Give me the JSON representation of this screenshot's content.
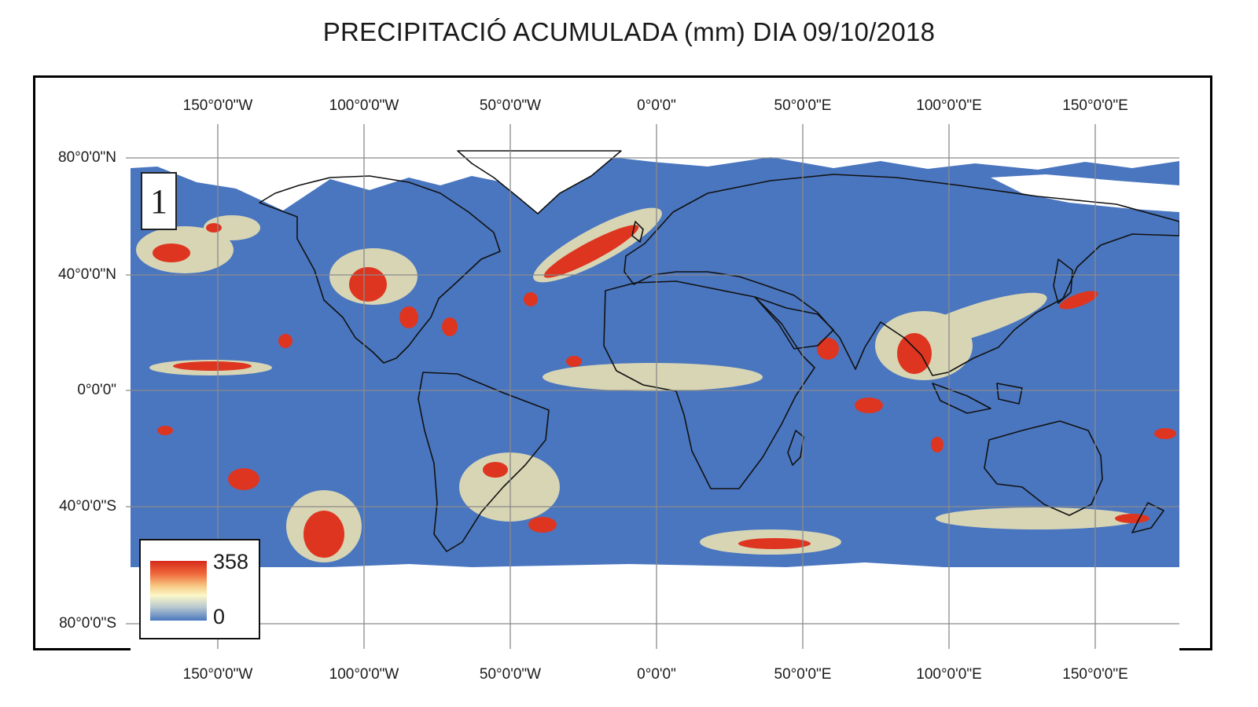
{
  "title": "PRECIPITACIÓ ACUMULADA (mm) DIA 09/10/2018",
  "panel_label": "1",
  "longitude_labels": [
    "150°0'0\"W",
    "100°0'0\"W",
    "50°0'0\"W",
    "0°0'0\"",
    "50°0'0\"E",
    "100°0'0\"E",
    "150°0'0\"E"
  ],
  "latitude_labels": [
    "80°0'0\"N",
    "40°0'0\"N",
    "0°0'0\"",
    "40°0'0\"S",
    "80°0'0\"S"
  ],
  "legend": {
    "max_label": "358",
    "min_label": "0",
    "max_value": 358,
    "min_value": 0,
    "unit": "mm"
  },
  "colors": {
    "ocean_low": "#4a76bf",
    "moderate": "#f6e9b0",
    "heavy": "#e0321e",
    "no_data": "#ffffff",
    "coastline": "#111111",
    "grid": "#8a8a8a"
  }
}
